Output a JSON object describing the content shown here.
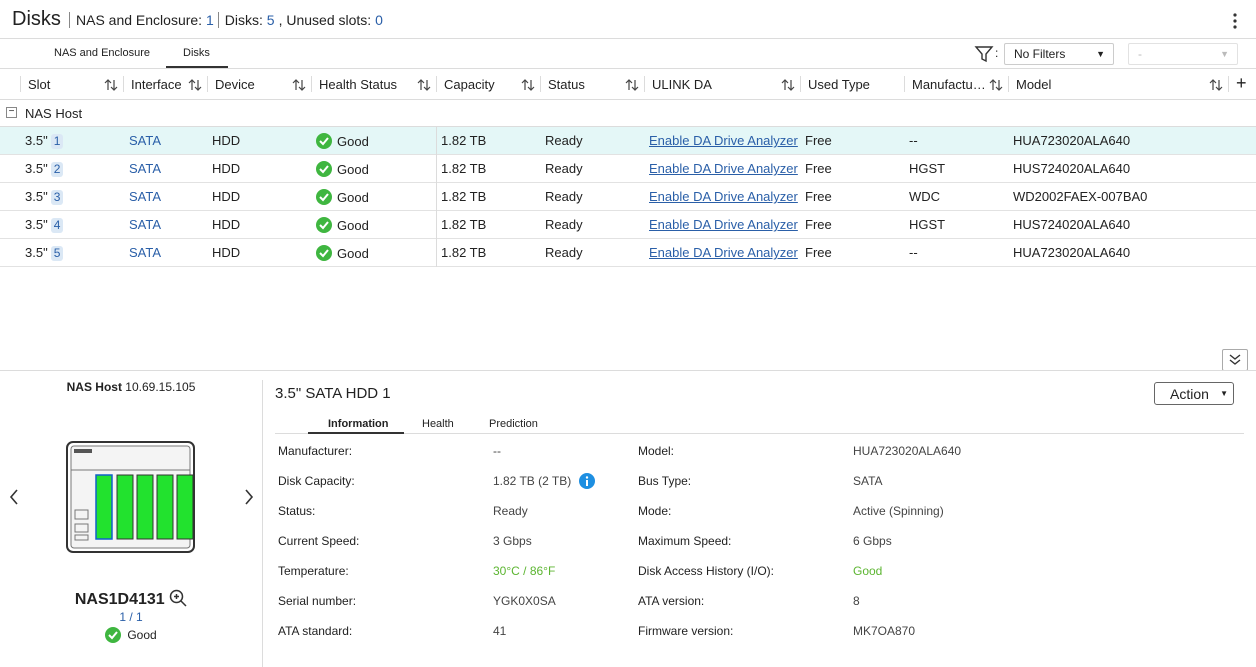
{
  "header": {
    "title": "Disks",
    "stats": [
      {
        "label": "NAS and Enclosure:",
        "value": 1
      },
      {
        "label": "Disks:",
        "value": 5
      },
      {
        "label": ", Unused slots:",
        "value": 0
      }
    ]
  },
  "tabs": {
    "items": [
      "NAS and Enclosure",
      "Disks"
    ],
    "active": 1
  },
  "filter": {
    "separator": ":",
    "selected": "No Filters",
    "secondary": "-"
  },
  "table": {
    "columns": [
      "Slot",
      "Interface",
      "Device",
      "Health Status",
      "Capacity",
      "Status",
      "ULINK DA",
      "Used Type",
      "Manufactu…",
      "Model"
    ],
    "group": "NAS Host",
    "rows": [
      {
        "slot": "3.5\"",
        "bay": 1,
        "interface": "SATA",
        "device": "HDD",
        "health": "Good",
        "capacity": "1.82 TB",
        "status": "Ready",
        "ulink_da": "Enable DA Drive Analyzer",
        "used_type": "Free",
        "manufacturer": "--",
        "model": "HUA723020ALA640"
      },
      {
        "slot": "3.5\"",
        "bay": 2,
        "interface": "SATA",
        "device": "HDD",
        "health": "Good",
        "capacity": "1.82 TB",
        "status": "Ready",
        "ulink_da": "Enable DA Drive Analyzer",
        "used_type": "Free",
        "manufacturer": "HGST",
        "model": "HUS724020ALA640"
      },
      {
        "slot": "3.5\"",
        "bay": 3,
        "interface": "SATA",
        "device": "HDD",
        "health": "Good",
        "capacity": "1.82 TB",
        "status": "Ready",
        "ulink_da": "Enable DA Drive Analyzer",
        "used_type": "Free",
        "manufacturer": "WDC",
        "model": "WD2002FAEX-007BA0"
      },
      {
        "slot": "3.5\"",
        "bay": 4,
        "interface": "SATA",
        "device": "HDD",
        "health": "Good",
        "capacity": "1.82 TB",
        "status": "Ready",
        "ulink_da": "Enable DA Drive Analyzer",
        "used_type": "Free",
        "manufacturer": "HGST",
        "model": "HUS724020ALA640"
      },
      {
        "slot": "3.5\"",
        "bay": 5,
        "interface": "SATA",
        "device": "HDD",
        "health": "Good",
        "capacity": "1.82 TB",
        "status": "Ready",
        "ulink_da": "Enable DA Drive Analyzer",
        "used_type": "Free",
        "manufacturer": "--",
        "model": "HUA723020ALA640"
      }
    ]
  },
  "detail": {
    "host": {
      "label": "NAS Host",
      "ip": "10.69.15.105",
      "name": "NAS1D4131",
      "page": "1 / 1",
      "status": "Good"
    },
    "title": "3.5\" SATA HDD 1",
    "action": "Action",
    "tabs": {
      "items": [
        "Information",
        "Health",
        "Prediction"
      ],
      "active": 0
    },
    "left": [
      {
        "label": "Manufacturer:",
        "value": "--"
      },
      {
        "label": "Disk Capacity:",
        "value": "1.82 TB (2 TB)"
      },
      {
        "label": "Status:",
        "value": "Ready"
      },
      {
        "label": "Current Speed:",
        "value": "3 Gbps"
      },
      {
        "label": "Temperature:",
        "value": "30°C / 86°F",
        "color": "#5cb531"
      },
      {
        "label": "Serial number:",
        "value": "YGK0X0SA"
      },
      {
        "label": "ATA standard:",
        "value": "41"
      }
    ],
    "right": [
      {
        "label": "Model:",
        "value": "HUA723020ALA640"
      },
      {
        "label": "Bus Type:",
        "value": "SATA"
      },
      {
        "label": "Mode:",
        "value": "Active (Spinning)"
      },
      {
        "label": "Maximum Speed:",
        "value": "6 Gbps"
      },
      {
        "label": "Disk Access History (I/O):",
        "value": "Good",
        "color": "#5cb531"
      },
      {
        "label": "ATA version:",
        "value": "8"
      },
      {
        "label": "Firmware version:",
        "value": "MK7OA870"
      }
    ]
  }
}
